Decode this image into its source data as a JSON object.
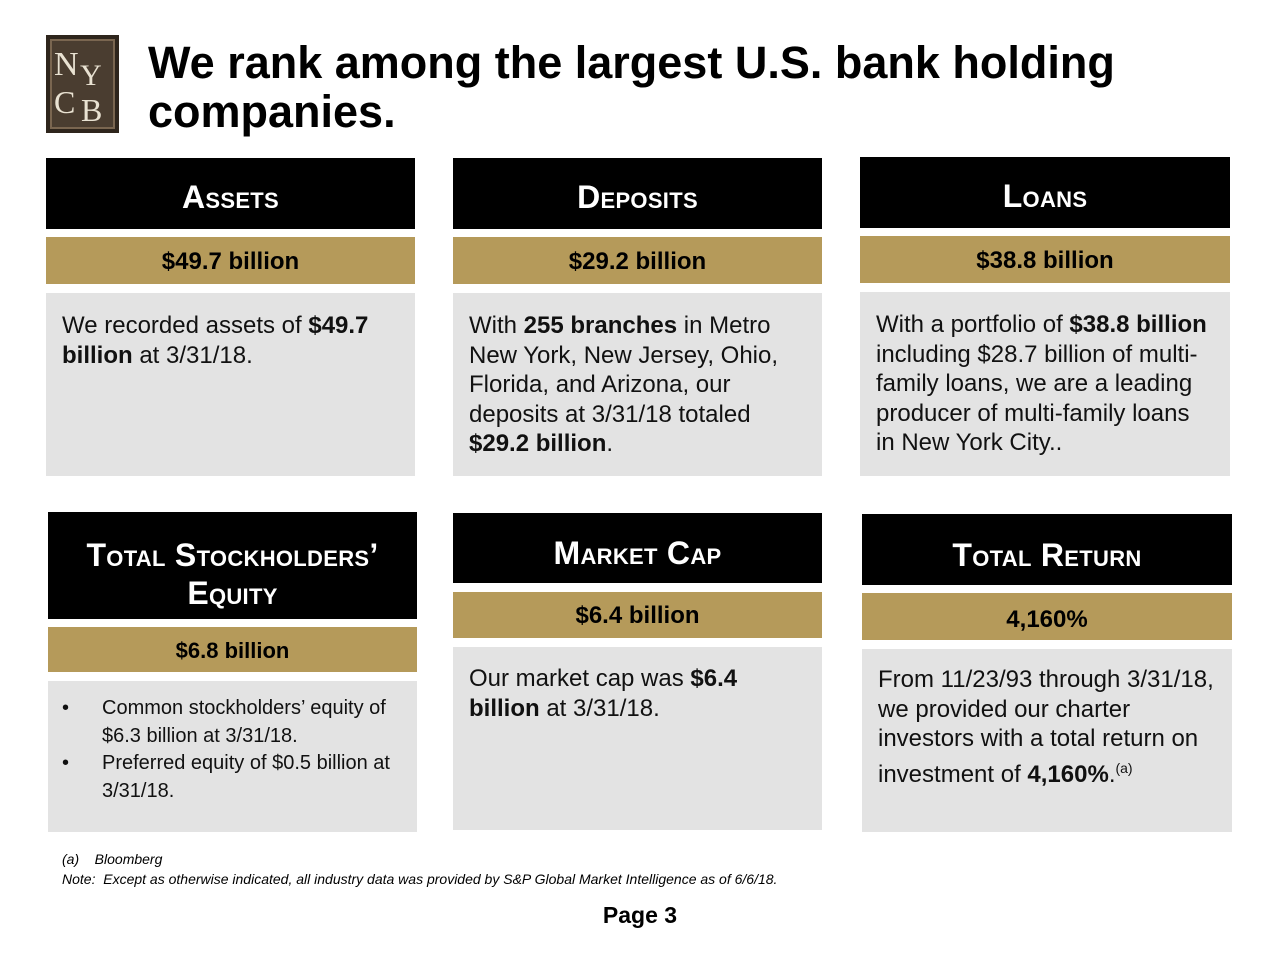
{
  "logo": {
    "letters": "NYCB"
  },
  "title": {
    "line1": "We rank among the largest U.S. bank holding",
    "line2": "companies."
  },
  "cards": {
    "assets": {
      "header": "Assets",
      "value": "$49.7 billion",
      "body": {
        "t1": "We recorded assets of ",
        "b1": "$49.7 billion",
        "t2": " at 3/31/18."
      }
    },
    "deposits": {
      "header": "Deposits",
      "value": "$29.2 billion",
      "body": {
        "t1": "With ",
        "b1": "255 branches",
        "t2": " in Metro New York, New Jersey, Ohio, Florida, and Arizona, our deposits at 3/31/18 totaled ",
        "b2": "$29.2 billion",
        "t3": "."
      }
    },
    "loans": {
      "header": "Loans",
      "value": "$38.8 billion",
      "body": {
        "t1": "With a portfolio of ",
        "b1": "$38.8 billion",
        "t2": " including $28.7 billion of multi-family loans, we are a leading producer of multi-family loans in New York City.."
      }
    },
    "equity": {
      "header_line1": "Total Stockholders’",
      "header_line2": "Equity",
      "value": "$6.8 billion",
      "bullet_char": "•",
      "bullets": [
        "Common stockholders’ equity of $6.3 billion at 3/31/18.",
        "Preferred equity of $0.5 billion at 3/31/18."
      ]
    },
    "market_cap": {
      "header": "Market Cap",
      "value": "$6.4 billion",
      "body": {
        "t1": "Our market cap was ",
        "b1": "$6.4 billion",
        "t2": " at 3/31/18."
      }
    },
    "total_return": {
      "header": "Total Return",
      "value": "4,160%",
      "body": {
        "t1": "From 11/23/93 through 3/31/18, we provided our charter investors with a total return on investment of ",
        "b1": "4,160%",
        "t2": ".",
        "sup": "(a)"
      }
    }
  },
  "footnotes": {
    "a": "(a)    Bloomberg",
    "note": "Note:  Except as otherwise indicated, all industry data was provided by S&P Global Market Intelligence as of 6/6/18."
  },
  "page_label": "Page 3",
  "colors": {
    "header_bg": "#000000",
    "value_bg": "#b59a5a",
    "body_bg": "#e3e3e3",
    "logo_bg": "#4a3d30"
  }
}
